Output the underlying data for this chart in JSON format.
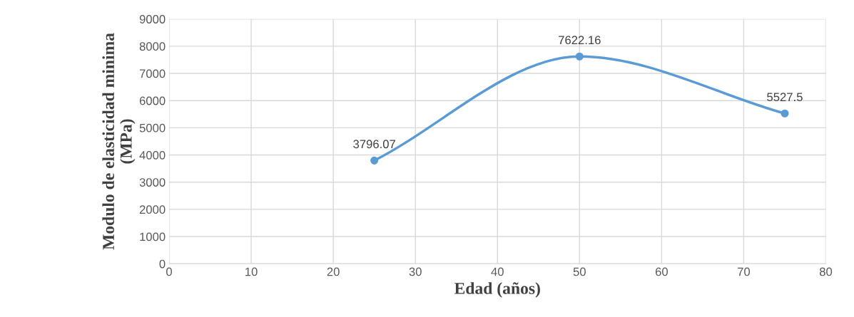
{
  "chart_data": {
    "type": "line",
    "xlabel": "Edad (años)",
    "ylabel": "Modulo de elasticidad minima\n(MPa)",
    "x": [
      25,
      50,
      75
    ],
    "series": [
      {
        "color": "#5b9bd5",
        "values": [
          3796.07,
          7622.16,
          5527.5
        ]
      }
    ],
    "xlim": [
      0,
      80
    ],
    "xticks": [
      0,
      10,
      20,
      30,
      40,
      50,
      60,
      70,
      80
    ],
    "ylim": [
      0,
      9000
    ],
    "yticks": [
      0,
      1000,
      2000,
      3000,
      4000,
      5000,
      6000,
      7000,
      8000,
      9000
    ],
    "grid": true,
    "marker": "circle",
    "line_style": "solid",
    "data_labels": true
  }
}
